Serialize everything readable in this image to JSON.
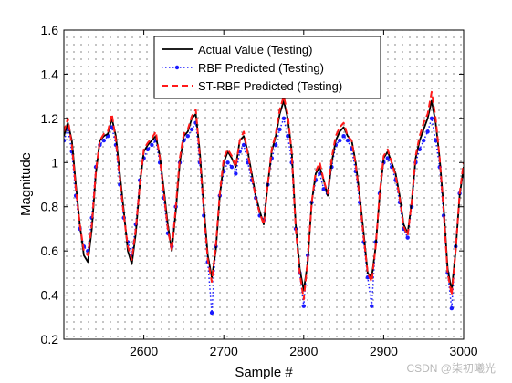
{
  "chart_data": {
    "type": "line",
    "title": "",
    "xlabel": "Sample #",
    "ylabel": "Magnitude",
    "xlim": [
      2500,
      3000
    ],
    "ylim": [
      0.2,
      1.6
    ],
    "xticks": [
      2600,
      2700,
      2800,
      2900,
      3000
    ],
    "yticks": [
      0.2,
      0.4,
      0.6,
      0.8,
      1,
      1.2,
      1.4,
      1.6
    ],
    "ytick_labels": [
      "0.2",
      "0.4",
      "0.6",
      "0.8",
      "1",
      "1.2",
      "1.4",
      "1.6"
    ],
    "grid": "dotted minor grid",
    "legend_position": "top-center",
    "series": [
      {
        "name": "Actual Value (Testing)",
        "color": "#000000",
        "style": "solid",
        "x": [
          2500,
          2505,
          2510,
          2515,
          2520,
          2525,
          2530,
          2535,
          2540,
          2545,
          2550,
          2555,
          2560,
          2565,
          2570,
          2575,
          2580,
          2585,
          2590,
          2595,
          2600,
          2605,
          2610,
          2615,
          2620,
          2625,
          2630,
          2635,
          2640,
          2645,
          2650,
          2655,
          2660,
          2665,
          2670,
          2675,
          2680,
          2685,
          2690,
          2695,
          2700,
          2705,
          2710,
          2715,
          2720,
          2725,
          2730,
          2735,
          2740,
          2745,
          2750,
          2755,
          2760,
          2765,
          2770,
          2775,
          2780,
          2785,
          2790,
          2795,
          2800,
          2805,
          2810,
          2815,
          2820,
          2825,
          2830,
          2835,
          2840,
          2845,
          2850,
          2855,
          2860,
          2865,
          2870,
          2875,
          2880,
          2885,
          2890,
          2895,
          2900,
          2905,
          2910,
          2915,
          2920,
          2925,
          2930,
          2935,
          2940,
          2945,
          2950,
          2955,
          2960,
          2965,
          2970,
          2975,
          2980,
          2985,
          2990,
          2995,
          3000
        ],
        "values": [
          1.12,
          1.18,
          1.1,
          0.9,
          0.72,
          0.58,
          0.55,
          0.7,
          0.95,
          1.1,
          1.12,
          1.13,
          1.2,
          1.12,
          0.95,
          0.78,
          0.6,
          0.54,
          0.68,
          0.9,
          1.05,
          1.08,
          1.1,
          1.12,
          1.03,
          0.88,
          0.72,
          0.6,
          0.78,
          1.0,
          1.12,
          1.14,
          1.2,
          1.22,
          1.05,
          0.8,
          0.58,
          0.48,
          0.6,
          0.85,
          1.0,
          1.05,
          1.02,
          0.98,
          1.1,
          1.12,
          1.05,
          0.95,
          0.85,
          0.78,
          0.72,
          0.9,
          1.05,
          1.12,
          1.22,
          1.28,
          1.2,
          1.05,
          0.72,
          0.52,
          0.42,
          0.55,
          0.82,
          0.95,
          0.98,
          0.92,
          0.85,
          1.0,
          1.1,
          1.14,
          1.16,
          1.12,
          1.1,
          1.0,
          0.85,
          0.68,
          0.5,
          0.48,
          0.62,
          0.85,
          1.02,
          1.05,
          1.0,
          0.95,
          0.85,
          0.72,
          0.68,
          0.82,
          1.02,
          1.1,
          1.15,
          1.2,
          1.28,
          1.18,
          1.02,
          0.8,
          0.52,
          0.42,
          0.6,
          0.85,
          0.98
        ]
      },
      {
        "name": "RBF Predicted (Testing)",
        "color": "#1a1aff",
        "style": "dotted",
        "x": [
          2500,
          2505,
          2510,
          2515,
          2520,
          2525,
          2530,
          2535,
          2540,
          2545,
          2550,
          2555,
          2560,
          2565,
          2570,
          2575,
          2580,
          2585,
          2590,
          2595,
          2600,
          2605,
          2610,
          2615,
          2620,
          2625,
          2630,
          2635,
          2640,
          2645,
          2650,
          2655,
          2660,
          2665,
          2670,
          2675,
          2680,
          2685,
          2690,
          2695,
          2700,
          2705,
          2710,
          2715,
          2720,
          2725,
          2730,
          2735,
          2740,
          2745,
          2750,
          2755,
          2760,
          2765,
          2770,
          2775,
          2780,
          2785,
          2790,
          2795,
          2800,
          2805,
          2810,
          2815,
          2820,
          2825,
          2830,
          2835,
          2840,
          2845,
          2850,
          2855,
          2860,
          2865,
          2870,
          2875,
          2880,
          2885,
          2890,
          2895,
          2900,
          2905,
          2910,
          2915,
          2920,
          2925,
          2930,
          2935,
          2940,
          2945,
          2950,
          2955,
          2960,
          2965,
          2970,
          2975,
          2980,
          2985,
          2990,
          2995,
          3000
        ],
        "values": [
          1.1,
          1.15,
          1.05,
          0.85,
          0.7,
          0.62,
          0.6,
          0.75,
          0.98,
          1.08,
          1.1,
          1.12,
          1.16,
          1.08,
          0.9,
          0.75,
          0.64,
          0.58,
          0.72,
          0.92,
          1.02,
          1.06,
          1.08,
          1.1,
          1.0,
          0.84,
          0.68,
          0.62,
          0.8,
          1.0,
          1.1,
          1.12,
          1.15,
          1.18,
          1.0,
          0.76,
          0.55,
          0.32,
          0.62,
          0.85,
          0.96,
          1.0,
          0.98,
          0.95,
          1.05,
          1.08,
          1.0,
          0.92,
          0.84,
          0.76,
          0.74,
          0.9,
          1.02,
          1.08,
          1.15,
          1.2,
          1.12,
          1.0,
          0.7,
          0.5,
          0.35,
          0.58,
          0.82,
          0.92,
          0.95,
          0.88,
          0.86,
          0.98,
          1.08,
          1.1,
          1.12,
          1.1,
          1.06,
          0.96,
          0.82,
          0.64,
          0.48,
          0.35,
          0.64,
          0.86,
          1.0,
          1.02,
          0.98,
          0.92,
          0.82,
          0.7,
          0.66,
          0.8,
          1.0,
          1.06,
          1.1,
          1.14,
          1.2,
          1.1,
          0.98,
          0.76,
          0.5,
          0.34,
          0.62,
          0.86,
          0.96
        ]
      },
      {
        "name": "ST-RBF Predicted (Testing)",
        "color": "#ff1a1a",
        "style": "dashed",
        "x": [
          2500,
          2505,
          2510,
          2515,
          2520,
          2525,
          2530,
          2535,
          2540,
          2545,
          2550,
          2555,
          2560,
          2565,
          2570,
          2575,
          2580,
          2585,
          2590,
          2595,
          2600,
          2605,
          2610,
          2615,
          2620,
          2625,
          2630,
          2635,
          2640,
          2645,
          2650,
          2655,
          2660,
          2665,
          2670,
          2675,
          2680,
          2685,
          2690,
          2695,
          2700,
          2705,
          2710,
          2715,
          2720,
          2725,
          2730,
          2735,
          2740,
          2745,
          2750,
          2755,
          2760,
          2765,
          2770,
          2775,
          2780,
          2785,
          2790,
          2795,
          2800,
          2805,
          2810,
          2815,
          2820,
          2825,
          2830,
          2835,
          2840,
          2845,
          2850,
          2855,
          2860,
          2865,
          2870,
          2875,
          2880,
          2885,
          2890,
          2895,
          2900,
          2905,
          2910,
          2915,
          2920,
          2925,
          2930,
          2935,
          2940,
          2945,
          2950,
          2955,
          2960,
          2965,
          2970,
          2975,
          2980,
          2985,
          2990,
          2995,
          3000
        ],
        "values": [
          1.14,
          1.2,
          1.08,
          0.88,
          0.72,
          0.6,
          0.58,
          0.72,
          0.96,
          1.1,
          1.13,
          1.14,
          1.22,
          1.1,
          0.93,
          0.76,
          0.62,
          0.56,
          0.7,
          0.9,
          1.06,
          1.09,
          1.11,
          1.14,
          1.02,
          0.86,
          0.7,
          0.6,
          0.8,
          1.02,
          1.13,
          1.15,
          1.21,
          1.24,
          1.03,
          0.78,
          0.56,
          0.46,
          0.62,
          0.86,
          1.02,
          1.06,
          1.03,
          0.98,
          1.1,
          1.14,
          1.04,
          0.94,
          0.84,
          0.77,
          0.72,
          0.9,
          1.06,
          1.13,
          1.24,
          1.3,
          1.22,
          1.04,
          0.7,
          0.5,
          0.38,
          0.56,
          0.82,
          0.96,
          1.0,
          0.92,
          0.86,
          1.02,
          1.12,
          1.16,
          1.18,
          1.12,
          1.1,
          0.99,
          0.84,
          0.66,
          0.5,
          0.46,
          0.62,
          0.86,
          1.03,
          1.06,
          1.0,
          0.94,
          0.84,
          0.71,
          0.67,
          0.82,
          1.03,
          1.12,
          1.18,
          1.22,
          1.32,
          1.2,
          1.02,
          0.78,
          0.5,
          0.4,
          0.6,
          0.86,
          1.0
        ]
      }
    ]
  },
  "watermark": "CSDN @柒初曦光"
}
